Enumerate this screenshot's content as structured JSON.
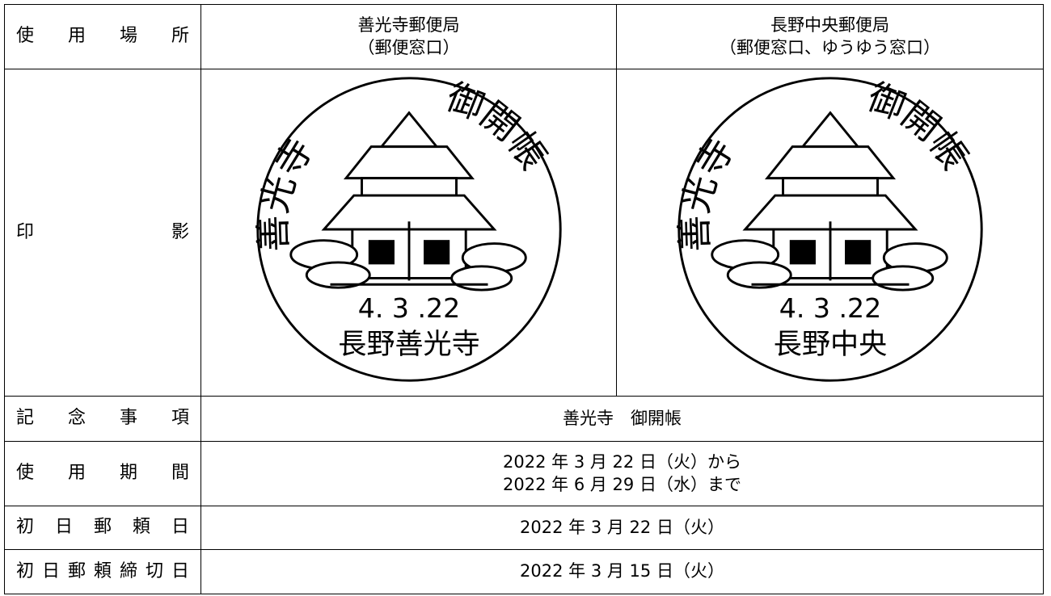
{
  "header": {
    "label": "使 用 場 所",
    "offices": [
      {
        "name": "善光寺郵便局",
        "counters": "（郵便窓口）"
      },
      {
        "name": "長野中央郵便局",
        "counters": "（郵便窓口、ゆうゆう窓口）"
      }
    ]
  },
  "stamps": {
    "label": "印 影",
    "items": [
      {
        "left_text": "善光寺",
        "right_text": "御開帳",
        "date": "4. 3 .22",
        "place": "長野善光寺"
      },
      {
        "left_text": "善光寺",
        "right_text": "御開帳",
        "date": "4. 3 .22",
        "place": "長野中央"
      }
    ]
  },
  "rows": [
    {
      "label": "記 念 事 項",
      "lines": [
        "善光寺　御開帳"
      ]
    },
    {
      "label": "使 用 期 間",
      "lines": [
        "2022 年 3 月 22 日（火）から",
        "2022 年 6 月 29 日（水）まで"
      ]
    },
    {
      "label": "初 日 郵 頼 日",
      "lines": [
        "2022 年 3 月 22 日（火）"
      ]
    },
    {
      "label": "初日郵頼締切日",
      "lines": [
        "2022 年 3 月 15 日（火）"
      ]
    }
  ]
}
